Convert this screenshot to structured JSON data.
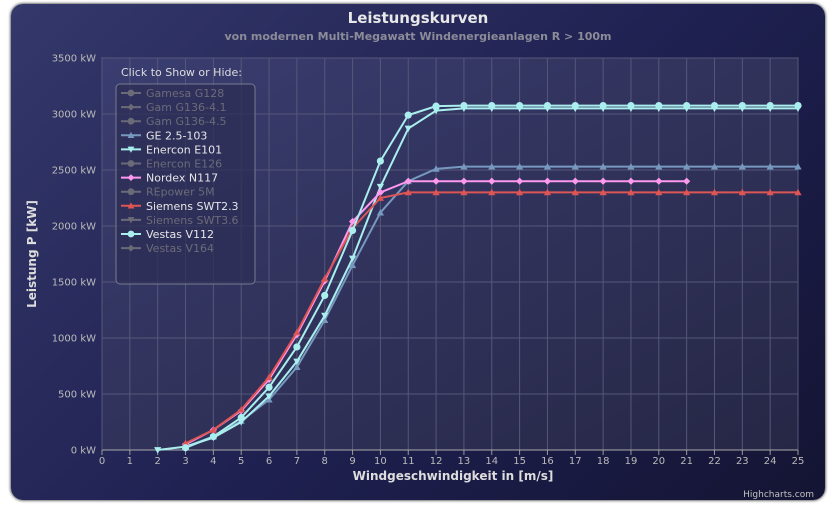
{
  "chart_data": {
    "type": "line",
    "title": "Leistungskurven",
    "subtitle": "von modernen Multi-Megawatt Windenergieanlagen R > 100m",
    "xlabel": "Windgeschwindigkeit in [m/s]",
    "ylabel": "Leistung P [kW]",
    "xlim": [
      0,
      25
    ],
    "ylim": [
      0,
      3500
    ],
    "x_ticks": [
      0,
      1,
      2,
      3,
      4,
      5,
      6,
      7,
      8,
      9,
      10,
      11,
      12,
      13,
      14,
      15,
      16,
      17,
      18,
      19,
      20,
      21,
      22,
      23,
      24,
      25
    ],
    "y_ticks": [
      0,
      500,
      1000,
      1500,
      2000,
      2500,
      3000,
      3500
    ],
    "y_unit": "kW",
    "grid": true,
    "legend": {
      "title": "Click to Show or Hide:",
      "position": "top-left"
    },
    "credit": "Highcharts.com",
    "series": [
      {
        "name": "Gamesa G128",
        "visible": false,
        "color": "#777777",
        "marker": "circle",
        "x": [],
        "values": []
      },
      {
        "name": "Gam G136-4.1",
        "visible": false,
        "color": "#777777",
        "marker": "diamond",
        "x": [],
        "values": []
      },
      {
        "name": "Gam G136-4.5",
        "visible": false,
        "color": "#777777",
        "marker": "circle",
        "x": [],
        "values": []
      },
      {
        "name": "GE 2.5-103",
        "visible": true,
        "color": "#7798bf",
        "marker": "triangle",
        "x": [
          3,
          4,
          5,
          6,
          7,
          8,
          9,
          10,
          11,
          12,
          13,
          14,
          15,
          16,
          17,
          18,
          19,
          20,
          21,
          22,
          23,
          24,
          25
        ],
        "values": [
          30,
          120,
          260,
          450,
          740,
          1160,
          1650,
          2120,
          2400,
          2510,
          2530,
          2530,
          2530,
          2530,
          2530,
          2530,
          2530,
          2530,
          2530,
          2530,
          2530,
          2530,
          2530
        ]
      },
      {
        "name": "Enercon E101",
        "visible": true,
        "color": "#aaeeee",
        "marker": "triangle-down",
        "x": [
          2,
          3,
          4,
          5,
          6,
          7,
          8,
          9,
          10,
          11,
          12,
          13,
          14,
          15,
          16,
          17,
          18,
          19,
          20,
          21,
          22,
          23,
          24,
          25
        ],
        "values": [
          0,
          30,
          110,
          250,
          480,
          790,
          1200,
          1710,
          2350,
          2870,
          3030,
          3050,
          3050,
          3050,
          3050,
          3050,
          3050,
          3050,
          3050,
          3050,
          3050,
          3050,
          3050,
          3050
        ]
      },
      {
        "name": "Enercon E126",
        "visible": false,
        "color": "#777777",
        "marker": "circle",
        "x": [],
        "values": []
      },
      {
        "name": "Nordex N117",
        "visible": true,
        "color": "#ff99ee",
        "marker": "diamond",
        "x": [
          3,
          4,
          5,
          6,
          7,
          8,
          9,
          10,
          11,
          12,
          13,
          14,
          15,
          16,
          17,
          18,
          19,
          20,
          21
        ],
        "values": [
          50,
          180,
          350,
          630,
          1030,
          1510,
          2040,
          2300,
          2400,
          2400,
          2400,
          2400,
          2400,
          2400,
          2400,
          2400,
          2400,
          2400,
          2400
        ]
      },
      {
        "name": "REpower 5M",
        "visible": false,
        "color": "#777777",
        "marker": "circle",
        "x": [],
        "values": []
      },
      {
        "name": "Siemens SWT2.3",
        "visible": true,
        "color": "#dd5555",
        "marker": "triangle",
        "x": [
          3,
          4,
          5,
          6,
          7,
          8,
          9,
          10,
          11,
          12,
          13,
          14,
          15,
          16,
          17,
          18,
          19,
          20,
          21,
          22,
          23,
          24,
          25
        ],
        "values": [
          60,
          180,
          360,
          650,
          1050,
          1530,
          1980,
          2250,
          2300,
          2300,
          2300,
          2300,
          2300,
          2300,
          2300,
          2300,
          2300,
          2300,
          2300,
          2300,
          2300,
          2300,
          2300
        ]
      },
      {
        "name": "Siemens SWT3.6",
        "visible": false,
        "color": "#777777",
        "marker": "triangle-down",
        "x": [],
        "values": []
      },
      {
        "name": "Vestas V112",
        "visible": true,
        "color": "#aaeeee",
        "marker": "circle",
        "x": [
          3,
          4,
          5,
          6,
          7,
          8,
          9,
          10,
          11,
          12,
          13,
          14,
          15,
          16,
          17,
          18,
          19,
          20,
          21,
          22,
          23,
          24,
          25
        ],
        "values": [
          20,
          120,
          290,
          560,
          920,
          1380,
          1960,
          2580,
          2990,
          3070,
          3075,
          3075,
          3075,
          3075,
          3075,
          3075,
          3075,
          3075,
          3075,
          3075,
          3075,
          3075,
          3075
        ]
      },
      {
        "name": "Vestas V164",
        "visible": false,
        "color": "#777777",
        "marker": "diamond",
        "x": [],
        "values": []
      }
    ]
  }
}
